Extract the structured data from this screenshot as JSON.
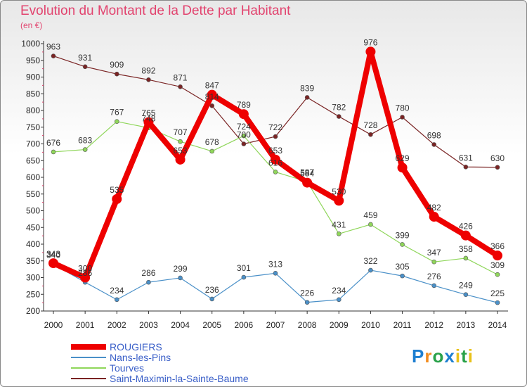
{
  "chart_data": {
    "type": "line",
    "title": "Evolution du Montant de la Dette par Habitant",
    "subtitle": "(en €)",
    "categories": [
      "2000",
      "2001",
      "2002",
      "2003",
      "2004",
      "2005",
      "2006",
      "2007",
      "2008",
      "2009",
      "2010",
      "2011",
      "2012",
      "2013",
      "2014"
    ],
    "ylim": [
      200,
      1000
    ],
    "yticks": [
      200,
      250,
      300,
      350,
      400,
      450,
      500,
      550,
      600,
      650,
      700,
      750,
      800,
      850,
      900,
      950,
      1000
    ],
    "grid": false,
    "legend_position": "bottom-left",
    "series": [
      {
        "name": "ROUGIERS",
        "color": "#ee0000",
        "values": [
          343,
          300,
          535,
          765,
          653,
          847,
          789,
          653,
          584,
          530,
          976,
          629,
          482,
          426,
          366
        ]
      },
      {
        "name": "Nans-les-Pins",
        "color": "#4a90c8",
        "values": [
          340,
          286,
          234,
          286,
          299,
          236,
          301,
          313,
          226,
          234,
          322,
          305,
          276,
          249,
          225
        ]
      },
      {
        "name": "Tourves",
        "color": "#8fd65a",
        "values": [
          676,
          683,
          767,
          748,
          707,
          678,
          724,
          616,
          587,
          431,
          459,
          399,
          347,
          358,
          309
        ]
      },
      {
        "name": "Saint-Maximin-la-Sainte-Baume",
        "color": "#7a2424",
        "values": [
          963,
          931,
          909,
          892,
          871,
          814,
          700,
          722,
          839,
          782,
          728,
          780,
          698,
          631,
          630
        ]
      }
    ]
  },
  "logo": {
    "text": "Proxiti"
  }
}
